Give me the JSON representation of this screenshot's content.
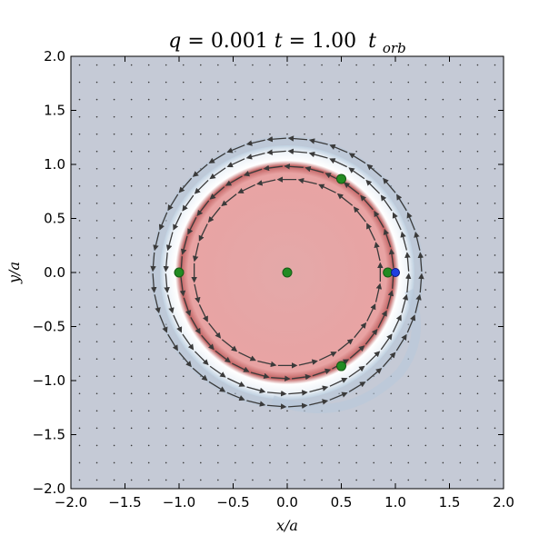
{
  "chart_data": {
    "type": "scatter",
    "title": {
      "q_label": "q",
      "q_value": "0.001",
      "t_label": "t",
      "t_value": "1.00",
      "t_unit": "t",
      "t_unit_sub": "orb"
    },
    "xlabel": "x/a",
    "ylabel": "y/a",
    "xlim": [
      -2.0,
      2.0
    ],
    "ylim": [
      -2.0,
      2.0
    ],
    "xticks": [
      -2.0,
      -1.5,
      -1.0,
      -0.5,
      0.0,
      0.5,
      1.0,
      1.5,
      2.0
    ],
    "yticks": [
      -2.0,
      -1.5,
      -1.0,
      -0.5,
      0.0,
      0.5,
      1.0,
      1.5,
      2.0
    ],
    "xtick_labels": [
      "−2.0",
      "−1.5",
      "−1.0",
      "−0.5",
      "0.0",
      "0.5",
      "1.0",
      "1.5",
      "2.0"
    ],
    "ytick_labels": [
      "−2.0",
      "−1.5",
      "−1.0",
      "−0.5",
      "0.0",
      "0.5",
      "1.0",
      "1.5",
      "2.0"
    ],
    "grid": false,
    "background_color": "#c5cad6",
    "disk": {
      "inner_radius": 0.8,
      "outer_radius": 1.15,
      "inner_color": "#e8a7a7",
      "ring_color": "#ffffff",
      "edge_color": "#c7d6e4"
    },
    "velocity_arrows": {
      "color": "#3a3a3a",
      "rings": [
        {
          "radius": 0.86,
          "count": 28
        },
        {
          "radius": 0.98,
          "count": 32
        },
        {
          "radius": 1.12,
          "count": 36
        },
        {
          "radius": 1.24,
          "count": 40
        }
      ]
    },
    "series": [
      {
        "marker_color": "#228b22",
        "points": [
          {
            "x": 0.0,
            "y": 0.0
          },
          {
            "x": 0.5,
            "y": 0.866
          },
          {
            "x": -1.0,
            "y": 0.0
          },
          {
            "x": 0.5,
            "y": -0.866
          },
          {
            "x": 0.93,
            "y": 0.0
          }
        ]
      },
      {
        "marker_color": "#1f3fe0",
        "points": [
          {
            "x": 1.0,
            "y": 0.0
          }
        ]
      }
    ]
  }
}
